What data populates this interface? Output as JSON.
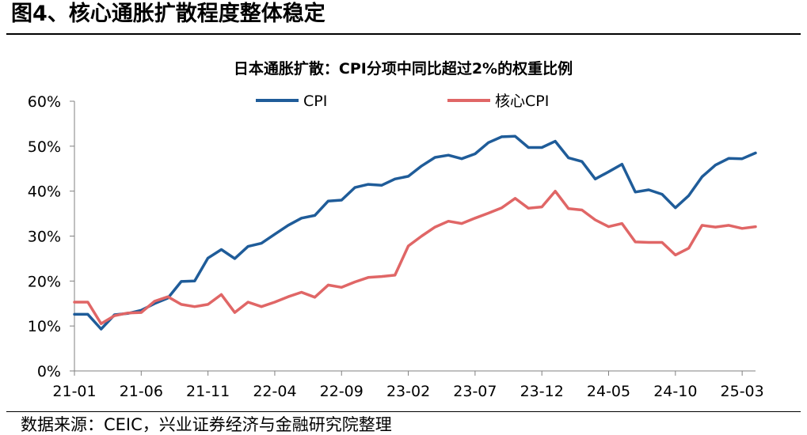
{
  "figure": {
    "title": "图4、核心通胀扩散程度整体稳定",
    "source": "数据来源：CEIC，兴业证券经济与金融研究院整理"
  },
  "colors": {
    "cpi": "#1F5C99",
    "core_cpi": "#E06666",
    "axis": "#808080"
  },
  "chart_data": {
    "type": "line",
    "title": "日本通胀扩散：CPI分项中同比超过2%的权重比例",
    "xlabel": "",
    "ylabel": "",
    "ylim": [
      0,
      60
    ],
    "yticks": [
      "0%",
      "10%",
      "20%",
      "30%",
      "40%",
      "50%",
      "60%"
    ],
    "xtick_labels": [
      "21-01",
      "21-06",
      "21-11",
      "22-04",
      "22-09",
      "23-02",
      "23-07",
      "23-12",
      "24-05",
      "24-10",
      "25-03"
    ],
    "grid": false,
    "legend_position": "top",
    "x": [
      "21-01",
      "21-02",
      "21-03",
      "21-04",
      "21-05",
      "21-06",
      "21-07",
      "21-08",
      "21-09",
      "21-10",
      "21-11",
      "21-12",
      "22-01",
      "22-02",
      "22-03",
      "22-04",
      "22-05",
      "22-06",
      "22-07",
      "22-08",
      "22-09",
      "22-10",
      "22-11",
      "22-12",
      "23-01",
      "23-02",
      "23-03",
      "23-04",
      "23-05",
      "23-06",
      "23-07",
      "23-08",
      "23-09",
      "23-10",
      "23-11",
      "23-12",
      "24-01",
      "24-02",
      "24-03",
      "24-04",
      "24-05",
      "24-06",
      "24-07",
      "24-08",
      "24-09",
      "24-10",
      "24-11",
      "24-12",
      "25-01",
      "25-02",
      "25-03",
      "25-04"
    ],
    "series": [
      {
        "name": "CPI",
        "values": [
          12.6,
          12.6,
          9.3,
          12.5,
          12.8,
          13.5,
          15.0,
          16.2,
          19.9,
          20.0,
          25.1,
          27.0,
          25.0,
          27.7,
          28.4,
          30.4,
          32.4,
          34.0,
          34.6,
          37.8,
          38.0,
          40.8,
          41.5,
          41.3,
          42.7,
          43.3,
          45.6,
          47.5,
          48.0,
          47.2,
          48.3,
          50.8,
          52.1,
          52.2,
          49.7,
          49.7,
          51.1,
          47.4,
          46.6,
          42.7,
          44.3,
          46.0,
          39.8,
          40.3,
          39.3,
          36.3,
          39.0,
          43.2,
          45.8,
          47.3,
          47.2,
          48.5
        ]
      },
      {
        "name": "核心CPI",
        "values": [
          15.3,
          15.3,
          10.5,
          12.3,
          12.9,
          13.0,
          15.5,
          16.5,
          14.8,
          14.3,
          14.8,
          17.0,
          13.0,
          15.3,
          14.3,
          15.3,
          16.5,
          17.5,
          16.4,
          19.1,
          18.6,
          19.8,
          20.8,
          21.0,
          21.3,
          27.8,
          30.0,
          32.0,
          33.3,
          32.8,
          34.0,
          35.1,
          36.3,
          38.4,
          36.2,
          36.5,
          40.0,
          36.1,
          35.8,
          33.6,
          32.1,
          32.8,
          28.7,
          28.6,
          28.6,
          25.8,
          27.3,
          32.4,
          32.0,
          32.4,
          31.7,
          32.1
        ]
      }
    ]
  }
}
